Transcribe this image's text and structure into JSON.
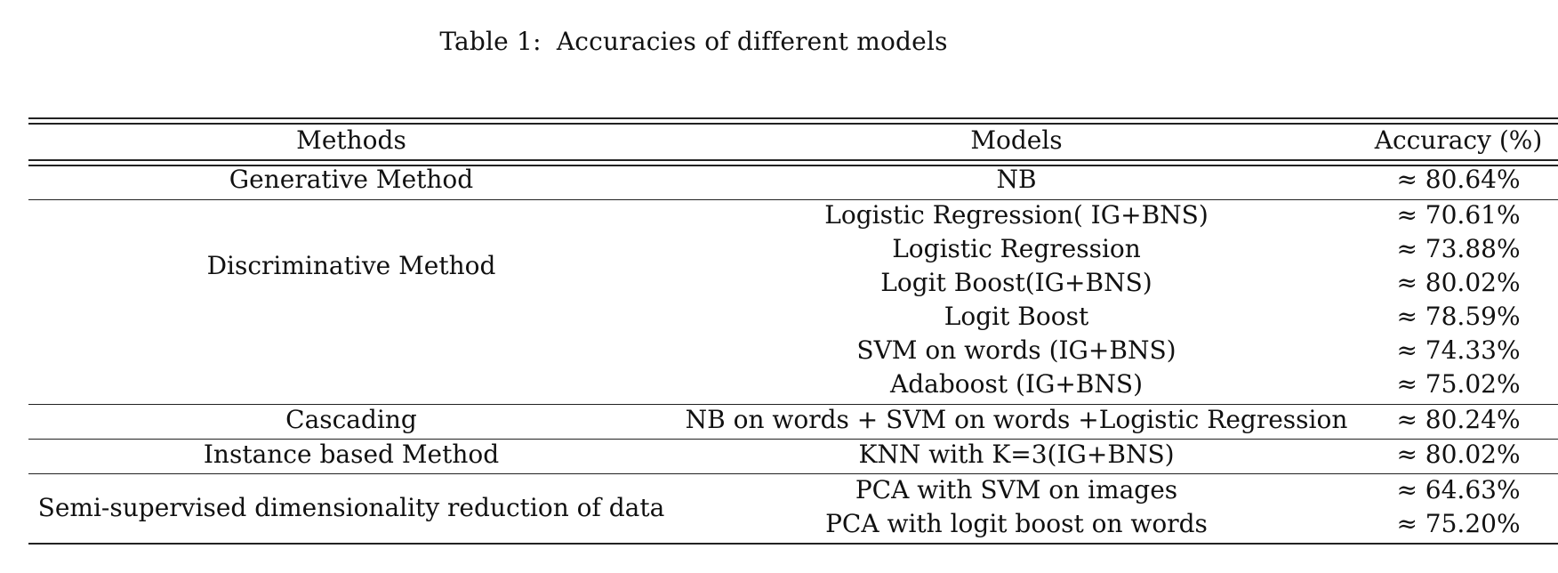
{
  "caption": {
    "label": "Table 1:",
    "text": "Accuracies of different models"
  },
  "table": {
    "headers": [
      "Methods",
      "Models",
      "Accuracy (%)"
    ],
    "groups": [
      {
        "method": "Generative Method",
        "rows": [
          {
            "model": "NB",
            "accuracy": "≈ 80.64%"
          }
        ]
      },
      {
        "method": "Discriminative Method",
        "rows": [
          {
            "model": "Logistic Regression( IG+BNS)",
            "accuracy": "≈ 70.61%"
          },
          {
            "model": "Logistic Regression",
            "accuracy": "≈ 73.88%"
          },
          {
            "model": "Logit Boost(IG+BNS)",
            "accuracy": "≈ 80.02%"
          },
          {
            "model": "Logit Boost",
            "accuracy": "≈ 78.59%"
          },
          {
            "model": "SVM on words (IG+BNS)",
            "accuracy": "≈ 74.33%"
          },
          {
            "model": "Adaboost (IG+BNS)",
            "accuracy": "≈ 75.02%"
          }
        ]
      },
      {
        "method": "Cascading",
        "rows": [
          {
            "model": "NB on words + SVM on words +Logistic Regression",
            "accuracy": "≈ 80.24%"
          }
        ]
      },
      {
        "method": "Instance based Method",
        "rows": [
          {
            "model": "KNN with K=3(IG+BNS)",
            "accuracy": "≈ 80.02%"
          }
        ]
      },
      {
        "method": "Semi-supervised dimensionality reduction of data",
        "rows": [
          {
            "model": "PCA with SVM on images",
            "accuracy": "≈ 64.63%"
          },
          {
            "model": "PCA with logit boost on words",
            "accuracy": "≈ 75.20%"
          }
        ]
      }
    ]
  }
}
